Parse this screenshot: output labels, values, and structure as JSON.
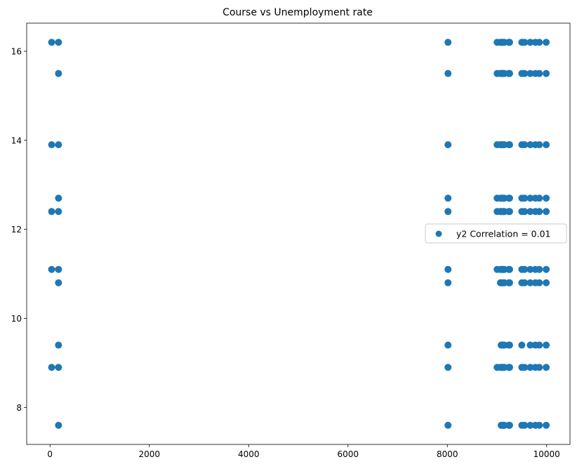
{
  "chart_data": {
    "type": "scatter",
    "title": "Course vs Unemployment rate",
    "xlabel": "",
    "ylabel": "",
    "xlim": [
      -470,
      10470
    ],
    "ylim": [
      7.17,
      16.63
    ],
    "xticks": [
      0,
      2000,
      4000,
      6000,
      8000,
      10000
    ],
    "yticks": [
      8,
      10,
      12,
      14,
      16
    ],
    "grid": false,
    "legend_position": "center-right",
    "color": "#1f77b4",
    "x_values": [
      33,
      171,
      8014,
      9003,
      9070,
      9085,
      9119,
      9130,
      9147,
      9238,
      9254,
      9500,
      9556,
      9670,
      9773,
      9853,
      9991
    ],
    "unemployment_levels": [
      7.6,
      8.9,
      9.4,
      10.8,
      11.1,
      12.4,
      12.7,
      13.9,
      15.5,
      16.2
    ],
    "series": [
      {
        "name": "y2 Correlation = 0.01",
        "points": [
          {
            "x": 33,
            "y": 16.2
          },
          {
            "x": 33,
            "y": 13.9
          },
          {
            "x": 33,
            "y": 12.4
          },
          {
            "x": 33,
            "y": 11.1
          },
          {
            "x": 33,
            "y": 8.9
          },
          {
            "x": 171,
            "y": 16.2
          },
          {
            "x": 171,
            "y": 15.5
          },
          {
            "x": 171,
            "y": 13.9
          },
          {
            "x": 171,
            "y": 12.7
          },
          {
            "x": 171,
            "y": 12.4
          },
          {
            "x": 171,
            "y": 11.1
          },
          {
            "x": 171,
            "y": 10.8
          },
          {
            "x": 171,
            "y": 9.4
          },
          {
            "x": 171,
            "y": 8.9
          },
          {
            "x": 171,
            "y": 7.6
          },
          {
            "x": 8014,
            "y": 16.2
          },
          {
            "x": 8014,
            "y": 15.5
          },
          {
            "x": 8014,
            "y": 13.9
          },
          {
            "x": 8014,
            "y": 12.7
          },
          {
            "x": 8014,
            "y": 12.4
          },
          {
            "x": 8014,
            "y": 11.1
          },
          {
            "x": 8014,
            "y": 10.8
          },
          {
            "x": 8014,
            "y": 9.4
          },
          {
            "x": 8014,
            "y": 8.9
          },
          {
            "x": 8014,
            "y": 7.6
          },
          {
            "x": 9003,
            "y": 16.2
          },
          {
            "x": 9003,
            "y": 15.5
          },
          {
            "x": 9003,
            "y": 13.9
          },
          {
            "x": 9003,
            "y": 12.7
          },
          {
            "x": 9003,
            "y": 12.4
          },
          {
            "x": 9003,
            "y": 11.1
          },
          {
            "x": 9003,
            "y": 8.9
          },
          {
            "x": 9070,
            "y": 16.2
          },
          {
            "x": 9070,
            "y": 15.5
          },
          {
            "x": 9070,
            "y": 13.9
          },
          {
            "x": 9070,
            "y": 12.7
          },
          {
            "x": 9070,
            "y": 12.4
          },
          {
            "x": 9070,
            "y": 11.1
          },
          {
            "x": 9070,
            "y": 10.8
          },
          {
            "x": 9070,
            "y": 8.9
          },
          {
            "x": 9085,
            "y": 16.2
          },
          {
            "x": 9085,
            "y": 15.5
          },
          {
            "x": 9085,
            "y": 13.9
          },
          {
            "x": 9085,
            "y": 12.7
          },
          {
            "x": 9085,
            "y": 12.4
          },
          {
            "x": 9085,
            "y": 11.1
          },
          {
            "x": 9085,
            "y": 10.8
          },
          {
            "x": 9085,
            "y": 9.4
          },
          {
            "x": 9085,
            "y": 8.9
          },
          {
            "x": 9085,
            "y": 7.6
          },
          {
            "x": 9119,
            "y": 16.2
          },
          {
            "x": 9119,
            "y": 15.5
          },
          {
            "x": 9119,
            "y": 13.9
          },
          {
            "x": 9119,
            "y": 12.7
          },
          {
            "x": 9119,
            "y": 12.4
          },
          {
            "x": 9119,
            "y": 11.1
          },
          {
            "x": 9119,
            "y": 10.8
          },
          {
            "x": 9119,
            "y": 9.4
          },
          {
            "x": 9119,
            "y": 8.9
          },
          {
            "x": 9119,
            "y": 7.6
          },
          {
            "x": 9130,
            "y": 16.2
          },
          {
            "x": 9130,
            "y": 15.5
          },
          {
            "x": 9130,
            "y": 13.9
          },
          {
            "x": 9130,
            "y": 12.7
          },
          {
            "x": 9130,
            "y": 12.4
          },
          {
            "x": 9130,
            "y": 11.1
          },
          {
            "x": 9130,
            "y": 10.8
          },
          {
            "x": 9130,
            "y": 9.4
          },
          {
            "x": 9130,
            "y": 8.9
          },
          {
            "x": 9130,
            "y": 7.6
          },
          {
            "x": 9147,
            "y": 16.2
          },
          {
            "x": 9147,
            "y": 15.5
          },
          {
            "x": 9147,
            "y": 13.9
          },
          {
            "x": 9147,
            "y": 12.7
          },
          {
            "x": 9147,
            "y": 12.4
          },
          {
            "x": 9147,
            "y": 11.1
          },
          {
            "x": 9147,
            "y": 10.8
          },
          {
            "x": 9147,
            "y": 9.4
          },
          {
            "x": 9147,
            "y": 8.9
          },
          {
            "x": 9147,
            "y": 7.6
          },
          {
            "x": 9238,
            "y": 16.2
          },
          {
            "x": 9238,
            "y": 15.5
          },
          {
            "x": 9238,
            "y": 13.9
          },
          {
            "x": 9238,
            "y": 12.7
          },
          {
            "x": 9238,
            "y": 12.4
          },
          {
            "x": 9238,
            "y": 11.1
          },
          {
            "x": 9238,
            "y": 10.8
          },
          {
            "x": 9238,
            "y": 9.4
          },
          {
            "x": 9238,
            "y": 8.9
          },
          {
            "x": 9238,
            "y": 7.6
          },
          {
            "x": 9254,
            "y": 16.2
          },
          {
            "x": 9254,
            "y": 15.5
          },
          {
            "x": 9254,
            "y": 13.9
          },
          {
            "x": 9254,
            "y": 12.7
          },
          {
            "x": 9254,
            "y": 12.4
          },
          {
            "x": 9254,
            "y": 11.1
          },
          {
            "x": 9254,
            "y": 10.8
          },
          {
            "x": 9254,
            "y": 9.4
          },
          {
            "x": 9254,
            "y": 8.9
          },
          {
            "x": 9254,
            "y": 7.6
          },
          {
            "x": 9500,
            "y": 16.2
          },
          {
            "x": 9500,
            "y": 15.5
          },
          {
            "x": 9500,
            "y": 13.9
          },
          {
            "x": 9500,
            "y": 12.7
          },
          {
            "x": 9500,
            "y": 12.4
          },
          {
            "x": 9500,
            "y": 11.1
          },
          {
            "x": 9500,
            "y": 10.8
          },
          {
            "x": 9500,
            "y": 9.4
          },
          {
            "x": 9500,
            "y": 8.9
          },
          {
            "x": 9500,
            "y": 7.6
          },
          {
            "x": 9556,
            "y": 16.2
          },
          {
            "x": 9556,
            "y": 15.5
          },
          {
            "x": 9556,
            "y": 13.9
          },
          {
            "x": 9556,
            "y": 12.7
          },
          {
            "x": 9556,
            "y": 12.4
          },
          {
            "x": 9556,
            "y": 11.1
          },
          {
            "x": 9556,
            "y": 10.8
          },
          {
            "x": 9556,
            "y": 8.9
          },
          {
            "x": 9556,
            "y": 7.6
          },
          {
            "x": 9670,
            "y": 16.2
          },
          {
            "x": 9670,
            "y": 15.5
          },
          {
            "x": 9670,
            "y": 13.9
          },
          {
            "x": 9670,
            "y": 12.7
          },
          {
            "x": 9670,
            "y": 12.4
          },
          {
            "x": 9670,
            "y": 11.1
          },
          {
            "x": 9670,
            "y": 10.8
          },
          {
            "x": 9670,
            "y": 9.4
          },
          {
            "x": 9670,
            "y": 8.9
          },
          {
            "x": 9670,
            "y": 7.6
          },
          {
            "x": 9773,
            "y": 16.2
          },
          {
            "x": 9773,
            "y": 15.5
          },
          {
            "x": 9773,
            "y": 13.9
          },
          {
            "x": 9773,
            "y": 12.7
          },
          {
            "x": 9773,
            "y": 12.4
          },
          {
            "x": 9773,
            "y": 11.1
          },
          {
            "x": 9773,
            "y": 10.8
          },
          {
            "x": 9773,
            "y": 9.4
          },
          {
            "x": 9773,
            "y": 8.9
          },
          {
            "x": 9773,
            "y": 7.6
          },
          {
            "x": 9853,
            "y": 16.2
          },
          {
            "x": 9853,
            "y": 15.5
          },
          {
            "x": 9853,
            "y": 13.9
          },
          {
            "x": 9853,
            "y": 12.7
          },
          {
            "x": 9853,
            "y": 12.4
          },
          {
            "x": 9853,
            "y": 11.1
          },
          {
            "x": 9853,
            "y": 10.8
          },
          {
            "x": 9853,
            "y": 9.4
          },
          {
            "x": 9853,
            "y": 8.9
          },
          {
            "x": 9853,
            "y": 7.6
          },
          {
            "x": 9991,
            "y": 16.2
          },
          {
            "x": 9991,
            "y": 15.5
          },
          {
            "x": 9991,
            "y": 13.9
          },
          {
            "x": 9991,
            "y": 12.7
          },
          {
            "x": 9991,
            "y": 12.4
          },
          {
            "x": 9991,
            "y": 11.1
          },
          {
            "x": 9991,
            "y": 10.8
          },
          {
            "x": 9991,
            "y": 9.4
          },
          {
            "x": 9991,
            "y": 8.9
          },
          {
            "x": 9991,
            "y": 7.6
          }
        ]
      }
    ]
  }
}
